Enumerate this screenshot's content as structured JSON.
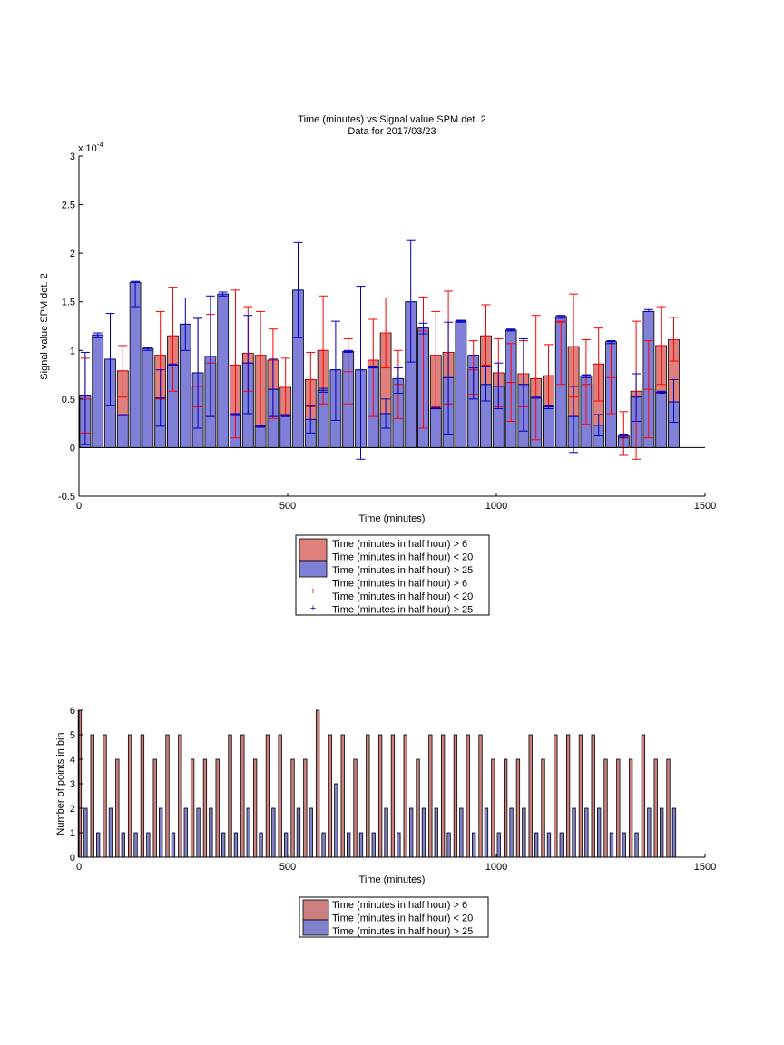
{
  "chart_data": [
    {
      "type": "bar",
      "title": "Time (minutes) vs Signal value SPM det. 2",
      "subtitle": "Data for 2017/03/23",
      "xlabel": "Time (minutes)",
      "ylabel": "Signal value SPM det. 2",
      "exponent_label": "x 10",
      "exponent_power": "-4",
      "xlim": [
        0,
        1500
      ],
      "ylim": [
        -0.5,
        3
      ],
      "xticks": [
        0,
        500,
        1000,
        1500
      ],
      "yticks": [
        -0.5,
        0,
        0.5,
        1,
        1.5,
        2,
        2.5,
        3
      ],
      "grid": false,
      "legend_position": "below",
      "legend": [
        "Time (minutes in half hour) > 6",
        "Time (minutes in half hour) < 20",
        "Time (minutes in half hour) > 25",
        "Time (minutes in half hour) > 6",
        "Time (minutes in half hour) < 20",
        "Time (minutes in half hour) > 25"
      ],
      "colors": {
        "red_bar": "#e0807c",
        "blue_bar": "#8080d8",
        "red_err": "#ff0000",
        "blue_err": "#0000c0"
      },
      "series": [
        {
          "color": "#e0807c",
          "x": [
            15,
            105,
            195,
            225,
            285,
            315,
            375,
            405,
            435,
            465,
            495,
            555,
            585,
            645,
            705,
            735,
            765,
            825,
            855,
            885,
            945,
            975,
            1005,
            1035,
            1065,
            1095,
            1125,
            1155,
            1185,
            1215,
            1245,
            1275,
            1305,
            1335,
            1365,
            1395,
            1425
          ],
          "values": [
            0.5,
            0.79,
            0.95,
            1.15,
            0.63,
            0.87,
            0.85,
            0.97,
            0.95,
            0.9,
            0.62,
            0.7,
            1.0,
            0.78,
            0.9,
            1.18,
            0.65,
            1.2,
            0.95,
            0.98,
            0.8,
            1.15,
            0.77,
            0.67,
            0.76,
            0.71,
            0.74,
            1.29,
            1.04,
            0.65,
            0.86,
            0.72,
            0.11,
            0.58,
            0.6,
            1.05,
            1.11
          ],
          "err_low": [
            0.15,
            0.52,
            0.5,
            0.58,
            0.42,
            0.32,
            0.1,
            0.58,
            0.23,
            0.3,
            0.32,
            0.42,
            0.45,
            0.45,
            0.32,
            0.82,
            0.3,
            0.2,
            0.42,
            0.45,
            0.55,
            0.85,
            0.42,
            0.27,
            0.42,
            0.08,
            0.42,
            0.65,
            0.52,
            0.24,
            0.48,
            0.35,
            -0.08,
            -0.12,
            0.1,
            0.65,
            0.89
          ],
          "err_high": [
            0.92,
            1.05,
            1.4,
            1.65,
            1.33,
            1.37,
            1.62,
            1.45,
            1.4,
            1.22,
            0.92,
            0.98,
            1.56,
            1.12,
            1.32,
            1.54,
            1.0,
            1.55,
            1.4,
            1.61,
            1.1,
            1.47,
            1.12,
            1.07,
            1.1,
            1.36,
            1.06,
            1.3,
            1.58,
            1.11,
            1.23,
            1.1,
            0.37,
            1.3,
            1.1,
            1.45,
            1.34
          ]
        },
        {
          "color": "#8080d8",
          "x": [
            15,
            45,
            75,
            105,
            135,
            165,
            195,
            225,
            255,
            285,
            315,
            345,
            375,
            405,
            435,
            465,
            495,
            525,
            555,
            585,
            615,
            645,
            675,
            705,
            735,
            765,
            795,
            825,
            855,
            885,
            915,
            945,
            975,
            1005,
            1035,
            1065,
            1095,
            1125,
            1155,
            1185,
            1215,
            1245,
            1275,
            1305,
            1335,
            1365,
            1395,
            1425
          ],
          "values": [
            0.54,
            1.16,
            0.91,
            0.33,
            1.7,
            1.02,
            0.51,
            0.85,
            1.27,
            0.77,
            0.94,
            1.58,
            0.34,
            0.87,
            0.22,
            0.6,
            0.33,
            1.62,
            0.29,
            0.59,
            0.8,
            0.99,
            0.8,
            0.82,
            0.35,
            0.71,
            1.5,
            1.23,
            0.4,
            0.72,
            1.3,
            0.95,
            0.65,
            0.63,
            1.21,
            0.65,
            0.51,
            0.42,
            1.35,
            0.32,
            0.74,
            0.23,
            1.09,
            0.12,
            0.52,
            1.4,
            0.57,
            0.47
          ],
          "err_low": [
            0.03,
            1.13,
            0.43,
            0.33,
            1.45,
            1.0,
            0.22,
            0.84,
            1.0,
            0.2,
            0.32,
            1.56,
            0.33,
            0.35,
            0.21,
            0.32,
            0.32,
            1.13,
            0.15,
            0.57,
            0.28,
            0.98,
            -0.12,
            0.82,
            0.2,
            0.56,
            0.88,
            1.17,
            0.4,
            0.14,
            1.29,
            0.5,
            0.48,
            0.4,
            1.2,
            0.17,
            0.51,
            0.4,
            1.33,
            -0.05,
            0.72,
            0.12,
            1.07,
            0.1,
            0.27,
            1.4,
            0.56,
            0.26
          ],
          "err_high": [
            0.98,
            1.18,
            1.38,
            0.34,
            1.71,
            1.03,
            0.8,
            0.86,
            1.54,
            1.33,
            1.56,
            1.6,
            0.35,
            1.36,
            0.23,
            0.91,
            0.34,
            2.11,
            0.43,
            0.61,
            1.3,
            1.0,
            1.66,
            0.83,
            0.5,
            0.82,
            2.13,
            1.28,
            0.41,
            1.29,
            1.31,
            0.82,
            0.83,
            0.87,
            1.22,
            1.12,
            0.52,
            0.43,
            1.36,
            0.63,
            0.75,
            0.34,
            1.1,
            0.14,
            0.76,
            1.42,
            0.58,
            0.7
          ]
        }
      ]
    },
    {
      "type": "bar",
      "xlabel": "Time (minutes)",
      "ylabel": "Number of points in bin",
      "xlim": [
        0,
        1500
      ],
      "ylim": [
        0,
        6
      ],
      "xticks": [
        0,
        500,
        1000,
        1500
      ],
      "yticks": [
        0,
        1,
        2,
        3,
        4,
        5,
        6
      ],
      "grid": false,
      "legend_position": "below",
      "legend": [
        "Time (minutes in half hour) > 6",
        "Time (minutes in half hour) < 20",
        "Time (minutes in half hour) > 25"
      ],
      "colors": {
        "red_bar": "#cc7f7f",
        "blue_bar": "#7f7fcc"
      },
      "series": [
        {
          "color": "#cc7f7f",
          "x": [
            2,
            32,
            62,
            92,
            122,
            152,
            182,
            212,
            242,
            272,
            302,
            332,
            362,
            392,
            422,
            452,
            482,
            512,
            542,
            572,
            602,
            632,
            662,
            692,
            722,
            752,
            782,
            812,
            842,
            872,
            902,
            932,
            962,
            992,
            1022,
            1052,
            1082,
            1112,
            1142,
            1172,
            1202,
            1232,
            1262,
            1292,
            1322,
            1352,
            1382,
            1412
          ],
          "values": [
            6,
            5,
            5,
            4,
            5,
            5,
            4,
            5,
            5,
            4,
            4,
            4,
            5,
            5,
            4,
            5,
            5,
            4,
            4,
            6,
            5,
            5,
            4,
            5,
            5,
            5,
            5,
            4,
            5,
            5,
            5,
            5,
            5,
            4,
            4,
            4,
            5,
            4,
            5,
            5,
            5,
            5,
            4,
            4,
            4,
            5,
            4,
            4
          ]
        },
        {
          "color": "#7f7fcc",
          "x": [
            16,
            46,
            76,
            106,
            136,
            166,
            196,
            226,
            256,
            286,
            316,
            346,
            376,
            406,
            436,
            466,
            496,
            526,
            556,
            586,
            616,
            646,
            676,
            706,
            736,
            766,
            796,
            826,
            856,
            886,
            916,
            946,
            976,
            1006,
            1036,
            1066,
            1096,
            1126,
            1156,
            1186,
            1216,
            1246,
            1276,
            1306,
            1336,
            1366,
            1396,
            1426
          ],
          "values": [
            2,
            1,
            2,
            1,
            1,
            1,
            2,
            1,
            2,
            2,
            2,
            1,
            1,
            2,
            1,
            2,
            1,
            2,
            2,
            1,
            3,
            1,
            1,
            1,
            2,
            1,
            2,
            2,
            2,
            1,
            2,
            1,
            2,
            1,
            2,
            2,
            1,
            1,
            1,
            2,
            2,
            2,
            1,
            1,
            1,
            2,
            2,
            2
          ]
        }
      ]
    }
  ]
}
